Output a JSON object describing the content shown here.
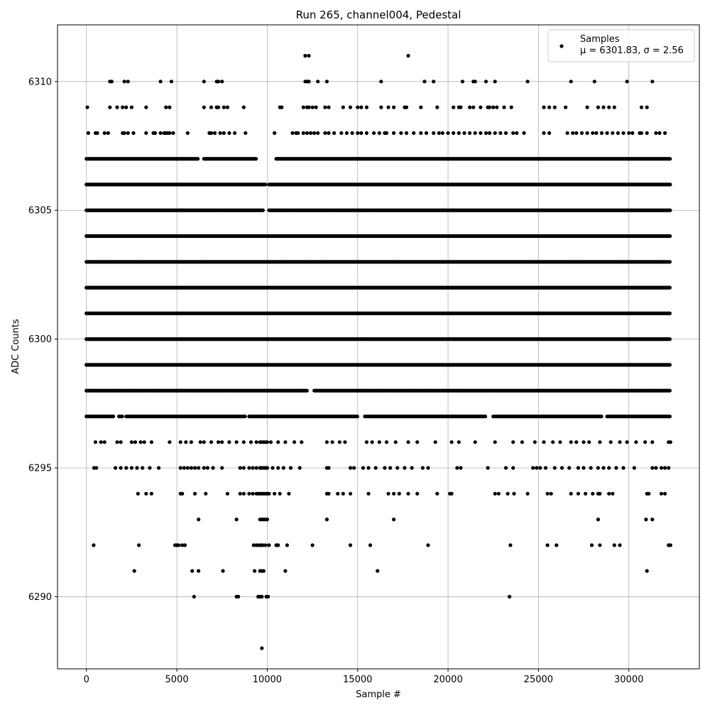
{
  "chart_data": {
    "type": "scatter",
    "title": "Run 265, channel004, Pedestal",
    "xlabel": "Sample #",
    "ylabel": "ADC Counts",
    "xlim": [
      -1600,
      33900
    ],
    "ylim": [
      6287.2,
      6312.2
    ],
    "xticks": [
      0,
      5000,
      10000,
      15000,
      20000,
      25000,
      30000
    ],
    "yticks": [
      6290,
      6295,
      6300,
      6305,
      6310
    ],
    "grid": true,
    "legend": {
      "position": "top-right",
      "entries": [
        {
          "label": "Samples",
          "marker_color": "#000000"
        }
      ],
      "stats_text": "μ = 6301.83, σ = 2.56"
    },
    "series": [
      {
        "name": "Samples",
        "color": "#000000",
        "n_samples": 32300,
        "x_range": [
          0,
          32300
        ],
        "levels": [
          {
            "y": 6288,
            "x": [
              9700
            ]
          },
          {
            "y": 6290,
            "x": [
              5950,
              8300,
              8400,
              9500,
              9600,
              9700,
              9950,
              10050,
              23400
            ]
          },
          {
            "y": 6291,
            "x": [
              2650,
              5850,
              6200,
              7550,
              9300,
              9600,
              9700,
              9800,
              11000,
              16100,
              31000
            ]
          },
          {
            "y": 6292,
            "x": [
              400,
              2900,
              4900,
              5000,
              5100,
              5300,
              5450,
              9250,
              9400,
              9550,
              9650,
              9750,
              9900,
              10100,
              10500,
              10600,
              11100,
              12500,
              14600,
              15700,
              18900,
              23450,
              25500,
              26000,
              27950,
              28400,
              29200,
              29500,
              32200,
              32300
            ]
          },
          {
            "y": 6293,
            "x": [
              6200,
              8300,
              9600,
              9700,
              9800,
              9900,
              10000,
              13300,
              17000,
              28300,
              30950,
              31300
            ]
          },
          {
            "y": 6294,
            "x": [
              2850,
              3300,
              3600,
              5200,
              5300,
              6000,
              6600,
              7800,
              8500,
              8700,
              9000,
              9200,
              9400,
              9500,
              9600,
              9700,
              9800,
              9900,
              10000,
              10100,
              10400,
              10700,
              11200,
              13300,
              13400,
              13900,
              14200,
              14600,
              15600,
              16700,
              17000,
              17300,
              17800,
              18300,
              19400,
              20100,
              20200,
              22600,
              22800,
              23300,
              23650,
              24400,
              25500,
              25700,
              26800,
              27200,
              27600,
              28000,
              28300,
              28400,
              28900,
              29100,
              31000,
              31100,
              31800,
              32000
            ]
          },
          {
            "y": 6295,
            "x": [
              420,
              550,
              1600,
              1900,
              2200,
              2500,
              2800,
              3100,
              3500,
              4000,
              5200,
              5400,
              5600,
              5800,
              6000,
              6200,
              6500,
              6700,
              7000,
              7500,
              8500,
              8700,
              9000,
              9200,
              9400,
              9600,
              9700,
              9800,
              9900,
              10000,
              10300,
              10600,
              10900,
              11300,
              11800,
              13300,
              13400,
              14600,
              14800,
              15300,
              15600,
              16000,
              16500,
              16800,
              17200,
              17600,
              18000,
              18600,
              18900,
              20500,
              20700,
              22200,
              23200,
              23600,
              24700,
              24900,
              25100,
              25400,
              25900,
              26300,
              26700,
              27200,
              27500,
              27900,
              28300,
              28600,
              28900,
              29300,
              29700,
              30300,
              31300,
              31500,
              31800,
              32000,
              32200
            ]
          },
          {
            "y": 6296,
            "x": [
              500,
              800,
              1000,
              1700,
              1900,
              2500,
              2700,
              3000,
              3200,
              3600,
              4600,
              5200,
              5500,
              5800,
              6300,
              6500,
              6900,
              7300,
              7500,
              7900,
              8300,
              8700,
              9100,
              9400,
              9600,
              9700,
              9800,
              9900,
              10000,
              10200,
              10600,
              11000,
              11500,
              11900,
              13300,
              13600,
              14000,
              14300,
              15500,
              15800,
              16200,
              16600,
              17100,
              17800,
              18300,
              19300,
              20200,
              20600,
              21500,
              22600,
              23600,
              24100,
              24800,
              25300,
              25800,
              26200,
              26800,
              27100,
              27500,
              27800,
              28400,
              29000,
              29500,
              29900,
              30400,
              30900,
              31300,
              32200,
              32300
            ]
          },
          {
            "y": 6297,
            "band": [
              [
                0,
                1500
              ],
              [
                1800,
                2000
              ],
              [
                2200,
                8800
              ],
              [
                9000,
                15000
              ],
              [
                15400,
                22100
              ],
              [
                22500,
                28500
              ],
              [
                28800,
                32300
              ]
            ]
          },
          {
            "y": 6298,
            "band": [
              [
                0,
                12200
              ],
              [
                12600,
                32300
              ]
            ]
          },
          {
            "y": 6299,
            "band": [
              [
                0,
                32300
              ]
            ]
          },
          {
            "y": 6300,
            "band": [
              [
                0,
                32300
              ]
            ]
          },
          {
            "y": 6301,
            "band": [
              [
                0,
                32300
              ]
            ]
          },
          {
            "y": 6302,
            "band": [
              [
                0,
                32300
              ]
            ]
          },
          {
            "y": 6303,
            "band": [
              [
                0,
                32300
              ]
            ]
          },
          {
            "y": 6304,
            "band": [
              [
                0,
                9900
              ],
              [
                10000,
                32300
              ]
            ]
          },
          {
            "y": 6305,
            "band": [
              [
                0,
                9800
              ],
              [
                10100,
                32300
              ]
            ]
          },
          {
            "y": 6306,
            "band": [
              [
                0,
                9900
              ],
              [
                10100,
                32300
              ]
            ]
          },
          {
            "y": 6307,
            "band": [
              [
                0,
                6200
              ],
              [
                6500,
                9400
              ],
              [
                10500,
                32300
              ]
            ]
          },
          {
            "y": 6308,
            "x": [
              100,
              500,
              600,
              1000,
              1200,
              2000,
              2100,
              2300,
              2600,
              3300,
              3700,
              3800,
              4100,
              4300,
              4400,
              4500,
              4600,
              4800,
              5600,
              6800,
              6900,
              7100,
              7400,
              7600,
              7900,
              8200,
              8800,
              10400,
              11400,
              11600,
              11700,
              12000,
              12200,
              12400,
              12600,
              12800,
              13200,
              13400,
              13700,
              14100,
              14400,
              14700,
              15000,
              15200,
              15500,
              15900,
              16200,
              16500,
              16600,
              17000,
              17400,
              17700,
              18100,
              18500,
              18800,
              19200,
              19500,
              19700,
              20000,
              20300,
              20600,
              20900,
              21200,
              21500,
              21800,
              22100,
              22300,
              22600,
              22900,
              23200,
              23600,
              23800,
              24200,
              25300,
              25600,
              26600,
              26900,
              27100,
              27400,
              27700,
              28000,
              28200,
              28500,
              28800,
              29100,
              29400,
              29700,
              30000,
              30200,
              30600,
              30700,
              31000,
              31500,
              31700,
              32000
            ]
          },
          {
            "y": 6309,
            "x": [
              50,
              1300,
              1700,
              2000,
              2200,
              2500,
              3300,
              4400,
              4600,
              6500,
              6900,
              7200,
              7300,
              7600,
              7800,
              8700,
              10700,
              10800,
              12000,
              12200,
              12300,
              12500,
              12700,
              13200,
              13400,
              14200,
              14600,
              15000,
              15200,
              15500,
              16300,
              16700,
              17000,
              17600,
              17700,
              18500,
              19400,
              20300,
              20600,
              20700,
              21200,
              21400,
              21800,
              22200,
              22300,
              22500,
              22700,
              23100,
              23500,
              25300,
              25600,
              25900,
              26500,
              27700,
              28300,
              28600,
              28900,
              29200,
              30700,
              31000
            ]
          },
          {
            "y": 6310,
            "x": [
              1300,
              1400,
              2100,
              2300,
              4100,
              4700,
              6500,
              7200,
              7300,
              7500,
              12100,
              12200,
              12300,
              12800,
              13300,
              16300,
              18700,
              19200,
              20800,
              21400,
              21500,
              22100,
              22600,
              24400,
              26800,
              28100,
              29900,
              31300
            ]
          },
          {
            "y": 6311,
            "x": [
              12100,
              12300,
              17800
            ]
          }
        ]
      }
    ]
  }
}
